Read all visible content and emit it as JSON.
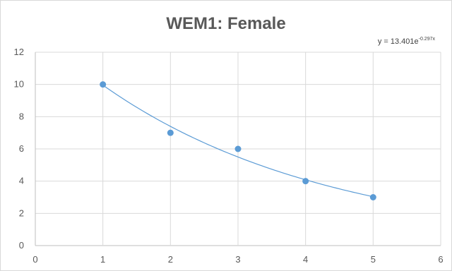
{
  "chart_data": {
    "type": "scatter",
    "title": "WEM1: Female",
    "xlabel": "",
    "ylabel": "",
    "xlim": [
      0,
      6
    ],
    "ylim": [
      0,
      12
    ],
    "xticks": [
      0,
      1,
      2,
      3,
      4,
      5,
      6
    ],
    "yticks": [
      0,
      2,
      4,
      6,
      8,
      10,
      12
    ],
    "grid": true,
    "colors": {
      "points": "#5b9bd5",
      "trendline": "#5b9bd5",
      "grid": "#d9d9d9",
      "text": "#595959"
    },
    "series": [
      {
        "x": [
          1,
          2,
          3,
          4,
          5
        ],
        "y": [
          10,
          7,
          6,
          4,
          3
        ]
      }
    ],
    "trendline": {
      "type": "exponential",
      "a": 13.401,
      "b": -0.297,
      "x_range": [
        1,
        5
      ],
      "label_base": "y = 13.401e",
      "label_exponent": "-0.297x"
    }
  }
}
